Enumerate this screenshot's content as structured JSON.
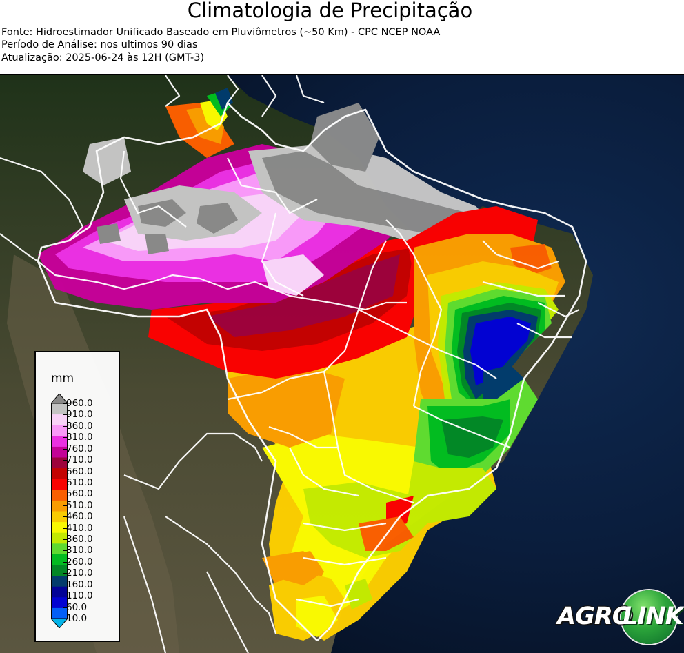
{
  "header": {
    "title": "Climatologia de Precipitação",
    "source": "Fonte: Hidroestimador Unificado Baseado em Pluviômetros (~50 Km) - CPC NCEP NOAA",
    "period": "Período de Análise: nos ultimos 90 dias",
    "updated": "Atualização: 2025-06-24 às 12H (GMT-3)"
  },
  "legend": {
    "unit": "mm",
    "ticks": [
      "960.0",
      "910.0",
      "860.0",
      "810.0",
      "760.0",
      "710.0",
      "660.0",
      "610.0",
      "560.0",
      "510.0",
      "460.0",
      "410.0",
      "360.0",
      "310.0",
      "260.0",
      "210.0",
      "160.0",
      "110.0",
      "60.0",
      "10.0"
    ],
    "colors": [
      "#00b8f0",
      "#0060ff",
      "#0000d8",
      "#00009a",
      "#003c6e",
      "#008a26",
      "#00c020",
      "#60e030",
      "#c8f000",
      "#ffff00",
      "#ffd000",
      "#ffa000",
      "#ff6000",
      "#ff0000",
      "#c80000",
      "#a0003c",
      "#c8009a",
      "#f030e8",
      "#ff9cff",
      "#ffd8ff",
      "#c8c8c8",
      "#8c8c8c"
    ]
  },
  "logo": {
    "agro": "AGRO",
    "link": "LINK"
  },
  "colors": {
    "ocean": "#0a1a33",
    "land": "#3a3d2a",
    "borders": "#ffffff"
  }
}
